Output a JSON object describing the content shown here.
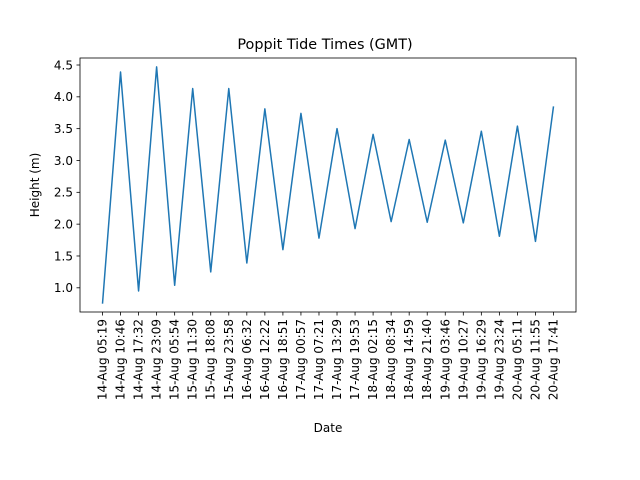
{
  "chart_data": {
    "type": "line",
    "title": "Poppit Tide Times (GMT)",
    "xlabel": "Date",
    "ylabel": "Height (m)",
    "ylim": [
      0.62,
      4.61
    ],
    "yticks": [
      "1.0",
      "1.5",
      "2.0",
      "2.5",
      "3.0",
      "3.5",
      "4.0",
      "4.5"
    ],
    "grid": false,
    "line_color": "#1f77b4",
    "categories": [
      "14-Aug 05:19",
      "14-Aug 10:46",
      "14-Aug 17:32",
      "14-Aug 23:09",
      "15-Aug 05:54",
      "15-Aug 11:30",
      "15-Aug 18:08",
      "15-Aug 23:58",
      "16-Aug 06:32",
      "16-Aug 12:22",
      "16-Aug 18:51",
      "17-Aug 00:57",
      "17-Aug 07:21",
      "17-Aug 13:29",
      "17-Aug 19:53",
      "18-Aug 02:15",
      "18-Aug 08:34",
      "18-Aug 14:59",
      "18-Aug 21:40",
      "19-Aug 03:46",
      "19-Aug 10:27",
      "19-Aug 16:29",
      "19-Aug 23:24",
      "20-Aug 05:11",
      "20-Aug 11:55",
      "20-Aug 17:41"
    ],
    "series": [
      {
        "values": [
          0.75,
          4.39,
          0.95,
          4.47,
          1.04,
          4.13,
          1.25,
          4.13,
          1.39,
          3.81,
          1.6,
          3.74,
          1.78,
          3.5,
          1.93,
          3.41,
          2.04,
          3.33,
          2.03,
          3.32,
          2.02,
          3.46,
          1.81,
          3.54,
          1.73,
          3.85
        ]
      }
    ]
  }
}
